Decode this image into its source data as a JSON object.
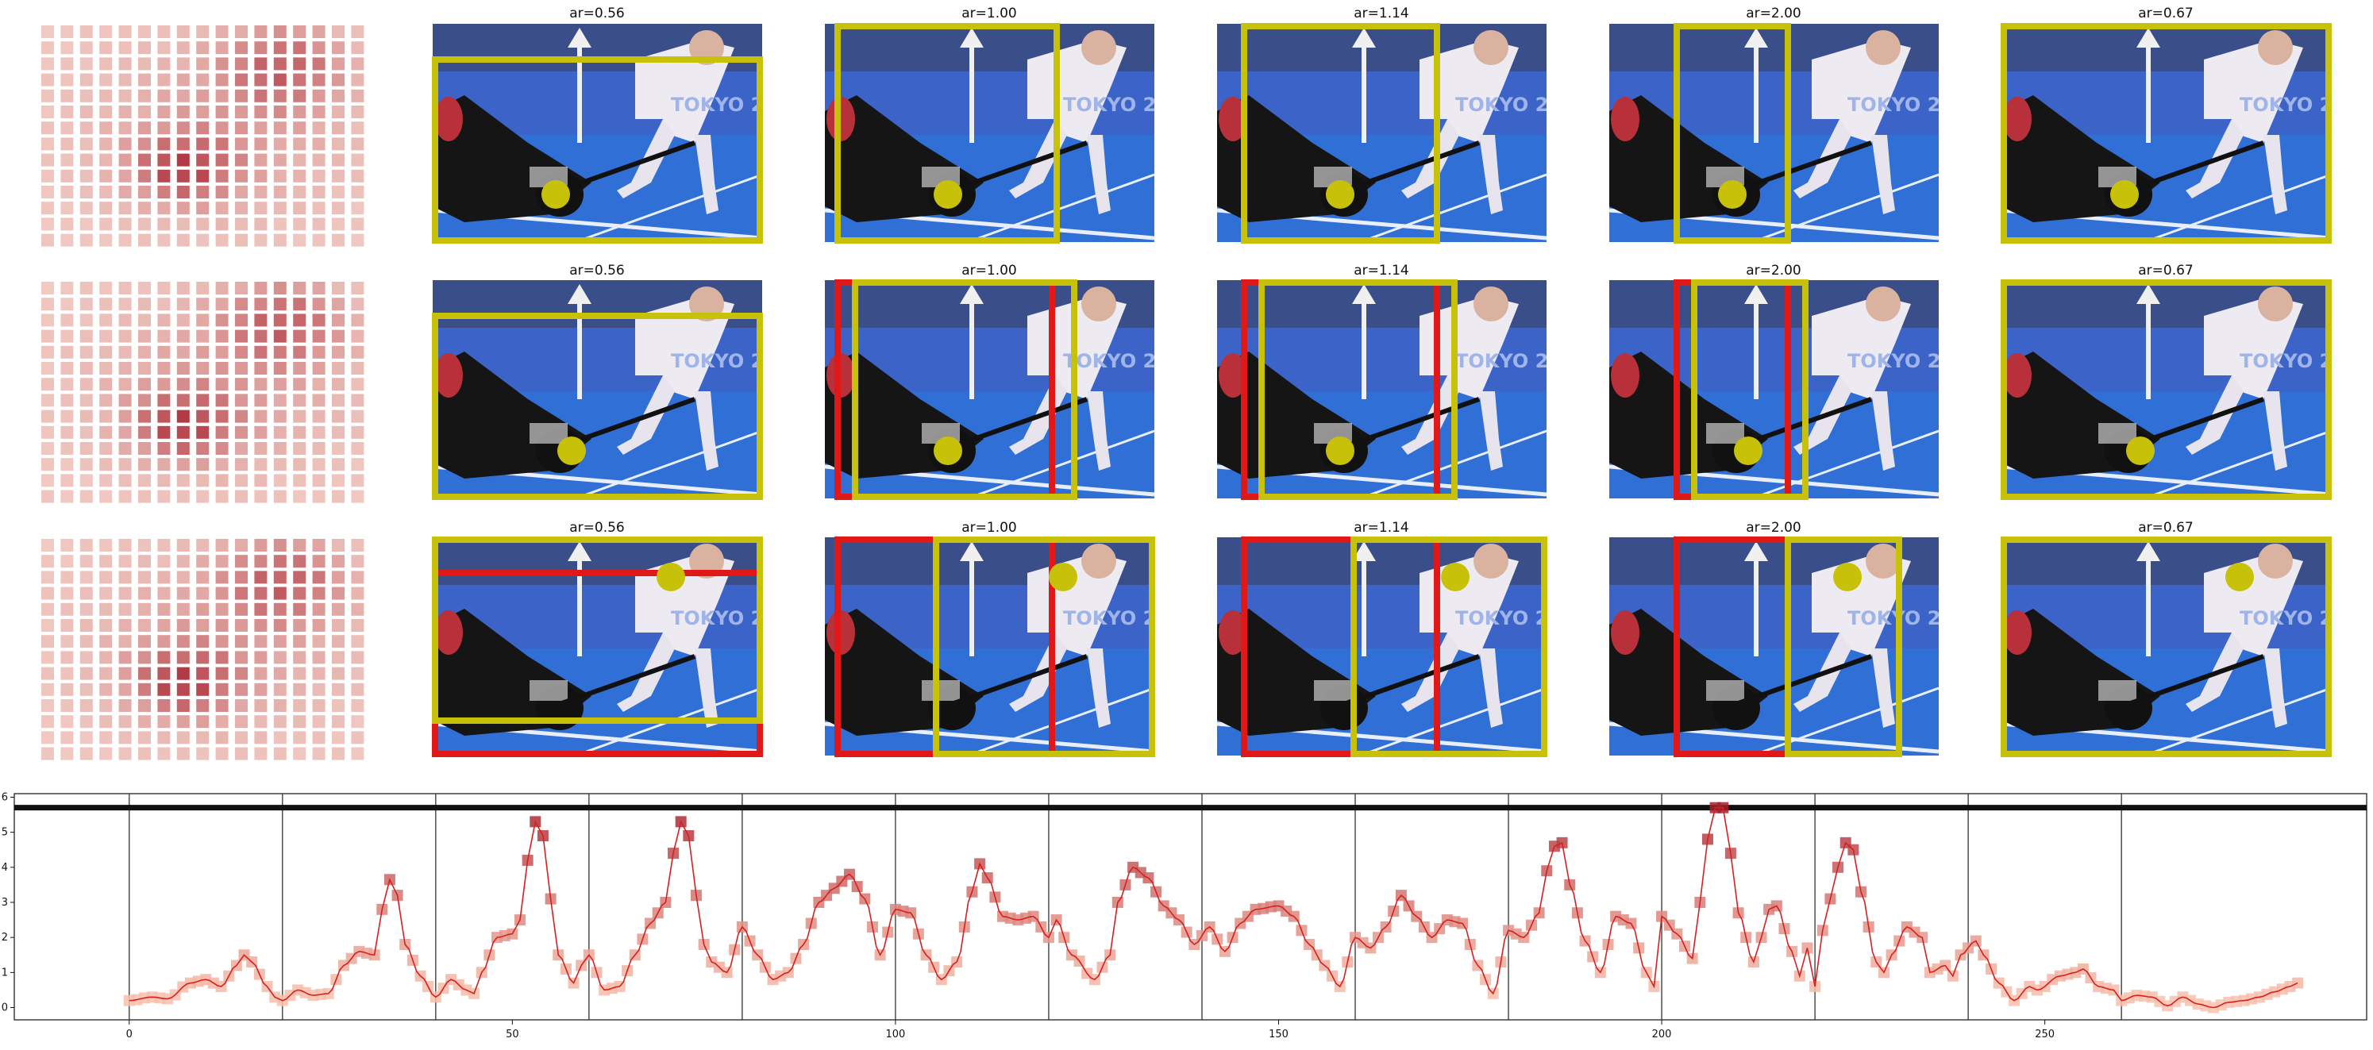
{
  "figure": {
    "rows": [
      {
        "titles": [
          "ar=0.56",
          "ar=1.00",
          "ar=1.14",
          "ar=2.00",
          "ar=0.67"
        ]
      },
      {
        "titles": [
          "ar=0.56",
          "ar=1.00",
          "ar=1.14",
          "ar=2.00",
          "ar=0.67"
        ]
      },
      {
        "titles": [
          "ar=0.56",
          "ar=1.00",
          "ar=1.14",
          "ar=2.00",
          "ar=0.67"
        ]
      }
    ],
    "colors": {
      "sky": "#2f4f9e",
      "field": "#2f6fd6",
      "banner": "#3c64c8",
      "crop_yellow": "#c8c10a",
      "crop_red": "#e01818",
      "focus_dot": "#c8c10a",
      "line_red": "#d62020",
      "heatmap_light": "#fde4d8",
      "heatmap_dark": "#a71e2a"
    }
  },
  "chart_data": {
    "type": "line",
    "title": "",
    "xlabel": "",
    "ylabel": "",
    "xlim": [
      -15,
      292
    ],
    "ylim": [
      -0.35,
      6.1
    ],
    "xticks": [
      0,
      50,
      100,
      150,
      200,
      250
    ],
    "yticks": [
      0,
      1,
      2,
      3,
      4,
      5,
      6
    ],
    "horizontal_line": 5.7,
    "vertical_lines": [
      0,
      20,
      40,
      60,
      80,
      100,
      120,
      140,
      160,
      180,
      200,
      220,
      240,
      260
    ],
    "keyframes": [
      [
        0,
        0.2
      ],
      [
        3,
        0.3
      ],
      [
        5,
        0.25
      ],
      [
        8,
        0.7
      ],
      [
        10,
        0.8
      ],
      [
        12,
        0.6
      ],
      [
        14,
        1.2
      ],
      [
        15,
        1.5
      ],
      [
        16,
        1.3
      ],
      [
        18,
        0.6
      ],
      [
        19,
        0.3
      ],
      [
        20,
        0.2
      ],
      [
        22,
        0.5
      ],
      [
        24,
        0.35
      ],
      [
        26,
        0.4
      ],
      [
        28,
        1.2
      ],
      [
        30,
        1.6
      ],
      [
        32,
        1.5
      ],
      [
        33,
        2.8
      ],
      [
        34,
        3.65
      ],
      [
        35,
        3.2
      ],
      [
        36,
        1.8
      ],
      [
        38,
        0.9
      ],
      [
        40,
        0.3
      ],
      [
        42,
        0.8
      ],
      [
        44,
        0.5
      ],
      [
        45,
        0.4
      ],
      [
        46,
        1.0
      ],
      [
        48,
        2.0
      ],
      [
        50,
        2.1
      ],
      [
        51,
        2.5
      ],
      [
        52,
        4.2
      ],
      [
        53,
        5.3
      ],
      [
        54,
        4.9
      ],
      [
        55,
        3.1
      ],
      [
        56,
        1.5
      ],
      [
        58,
        0.7
      ],
      [
        59,
        1.2
      ],
      [
        60,
        1.5
      ],
      [
        62,
        0.5
      ],
      [
        64,
        0.6
      ],
      [
        66,
        1.5
      ],
      [
        68,
        2.4
      ],
      [
        70,
        3.0
      ],
      [
        71,
        4.4
      ],
      [
        72,
        5.3
      ],
      [
        73,
        4.9
      ],
      [
        74,
        3.2
      ],
      [
        75,
        1.8
      ],
      [
        76,
        1.3
      ],
      [
        78,
        1.0
      ],
      [
        80,
        2.3
      ],
      [
        82,
        1.5
      ],
      [
        84,
        0.8
      ],
      [
        86,
        1.0
      ],
      [
        88,
        1.8
      ],
      [
        90,
        3.0
      ],
      [
        92,
        3.4
      ],
      [
        94,
        3.8
      ],
      [
        96,
        3.1
      ],
      [
        98,
        1.5
      ],
      [
        100,
        2.8
      ],
      [
        102,
        2.7
      ],
      [
        104,
        1.5
      ],
      [
        106,
        0.8
      ],
      [
        108,
        1.3
      ],
      [
        110,
        3.3
      ],
      [
        111,
        4.1
      ],
      [
        112,
        3.7
      ],
      [
        114,
        2.6
      ],
      [
        116,
        2.5
      ],
      [
        118,
        2.6
      ],
      [
        120,
        2.0
      ],
      [
        121,
        2.5
      ],
      [
        123,
        1.5
      ],
      [
        126,
        0.8
      ],
      [
        128,
        1.5
      ],
      [
        129,
        3.0
      ],
      [
        131,
        4.0
      ],
      [
        133,
        3.7
      ],
      [
        135,
        2.9
      ],
      [
        137,
        2.5
      ],
      [
        139,
        1.8
      ],
      [
        141,
        2.3
      ],
      [
        143,
        1.6
      ],
      [
        145,
        2.4
      ],
      [
        147,
        2.8
      ],
      [
        150,
        2.9
      ],
      [
        152,
        2.6
      ],
      [
        154,
        1.8
      ],
      [
        156,
        1.2
      ],
      [
        158,
        0.6
      ],
      [
        160,
        2.0
      ],
      [
        162,
        1.7
      ],
      [
        164,
        2.3
      ],
      [
        166,
        3.2
      ],
      [
        168,
        2.6
      ],
      [
        170,
        2.0
      ],
      [
        172,
        2.5
      ],
      [
        174,
        2.4
      ],
      [
        176,
        1.2
      ],
      [
        178,
        0.4
      ],
      [
        180,
        2.2
      ],
      [
        182,
        2.0
      ],
      [
        184,
        2.7
      ],
      [
        185,
        3.9
      ],
      [
        186,
        4.6
      ],
      [
        187,
        4.7
      ],
      [
        188,
        3.5
      ],
      [
        190,
        1.9
      ],
      [
        192,
        1.0
      ],
      [
        194,
        2.6
      ],
      [
        196,
        2.4
      ],
      [
        198,
        1.0
      ],
      [
        199,
        0.6
      ],
      [
        200,
        2.6
      ],
      [
        202,
        2.1
      ],
      [
        204,
        1.4
      ],
      [
        205,
        3.0
      ],
      [
        206,
        4.8
      ],
      [
        207,
        5.7
      ],
      [
        208,
        5.7
      ],
      [
        209,
        4.4
      ],
      [
        210,
        2.7
      ],
      [
        212,
        1.3
      ],
      [
        213,
        2.0
      ],
      [
        214,
        2.8
      ],
      [
        215,
        2.9
      ],
      [
        217,
        1.6
      ],
      [
        218,
        0.9
      ],
      [
        219,
        1.7
      ],
      [
        220,
        0.6
      ],
      [
        221,
        2.2
      ],
      [
        222,
        3.1
      ],
      [
        223,
        4.0
      ],
      [
        224,
        4.7
      ],
      [
        225,
        4.5
      ],
      [
        226,
        3.3
      ],
      [
        228,
        1.3
      ],
      [
        229,
        1.0
      ],
      [
        230,
        1.5
      ],
      [
        232,
        2.3
      ],
      [
        234,
        2.0
      ],
      [
        235,
        1.0
      ],
      [
        237,
        1.2
      ],
      [
        238,
        0.9
      ],
      [
        239,
        1.5
      ],
      [
        241,
        1.9
      ],
      [
        242,
        1.5
      ],
      [
        244,
        0.7
      ],
      [
        246,
        0.2
      ],
      [
        248,
        0.6
      ],
      [
        249,
        0.5
      ],
      [
        252,
        0.9
      ],
      [
        254,
        1.0
      ],
      [
        255,
        1.1
      ],
      [
        257,
        0.6
      ],
      [
        259,
        0.5
      ],
      [
        260,
        0.2
      ],
      [
        262,
        0.35
      ],
      [
        264,
        0.3
      ],
      [
        266,
        0.05
      ],
      [
        268,
        0.3
      ],
      [
        270,
        0.1
      ],
      [
        272,
        0.0
      ],
      [
        274,
        0.15
      ],
      [
        276,
        0.2
      ],
      [
        278,
        0.3
      ],
      [
        280,
        0.45
      ],
      [
        282,
        0.6
      ],
      [
        283,
        0.7
      ]
    ]
  }
}
